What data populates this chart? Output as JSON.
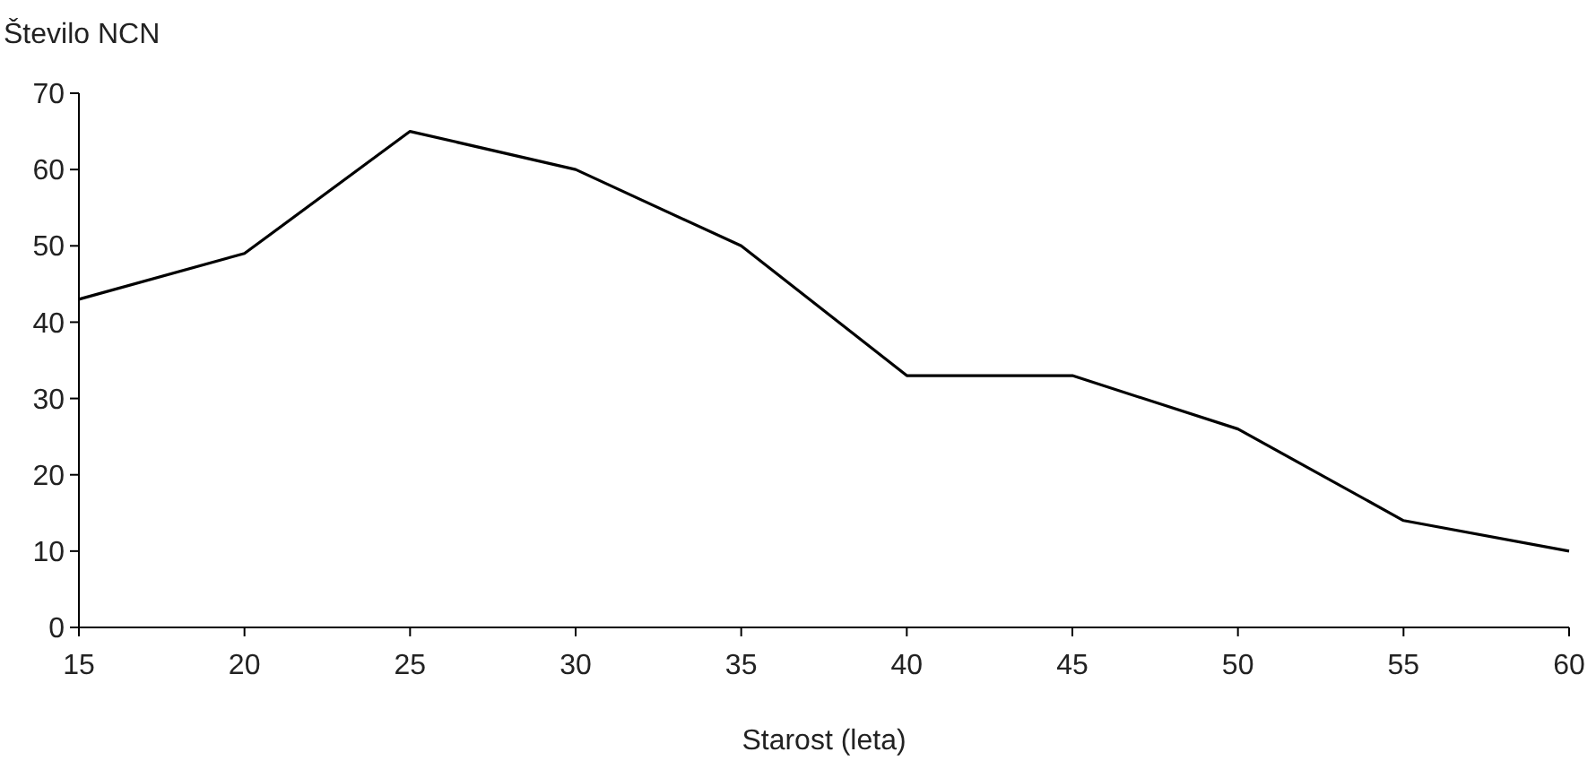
{
  "chart_data": {
    "type": "line",
    "ylabel": "Število NCN",
    "xlabel": "Starost (leta)",
    "x": [
      15,
      20,
      25,
      30,
      35,
      40,
      45,
      50,
      55,
      60
    ],
    "series": [
      {
        "color": "#000000",
        "values": [
          43,
          49,
          65,
          60,
          50,
          33,
          33,
          26,
          14,
          10
        ]
      }
    ],
    "xlim": [
      15,
      60
    ],
    "xticks": [
      15,
      20,
      25,
      30,
      35,
      40,
      45,
      50,
      55,
      60
    ],
    "ylim": [
      0,
      70
    ],
    "yticks": [
      0,
      10,
      20,
      30,
      40,
      50,
      60,
      70
    ],
    "grid": false,
    "marker": "none",
    "line_style": "solid"
  }
}
